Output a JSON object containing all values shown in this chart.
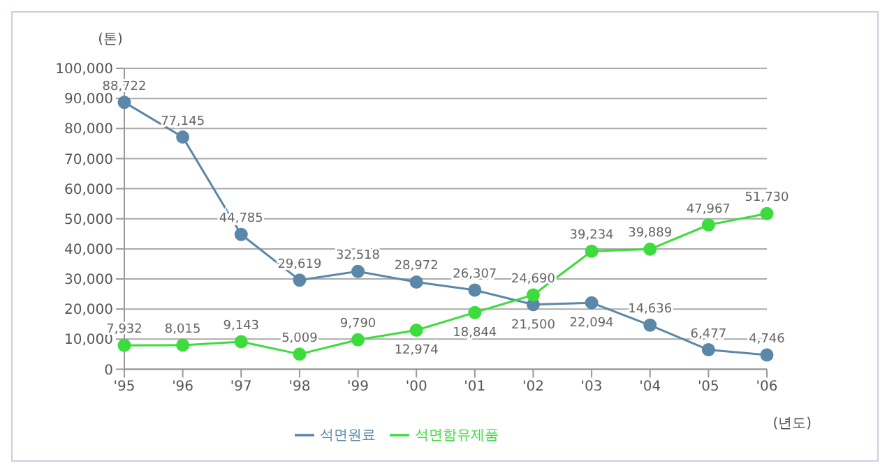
{
  "chart_data": {
    "type": "line",
    "ylabel": "(톤)",
    "xlabel": "(년도)",
    "categories": [
      "'95",
      "'96",
      "'97",
      "'98",
      "'99",
      "'00",
      "'01",
      "'02",
      "'03",
      "'04",
      "'05",
      "'06"
    ],
    "series": [
      {
        "name": "석면원료",
        "color": "#5b87a8",
        "values": [
          88722,
          77145,
          44785,
          29619,
          32518,
          28972,
          26307,
          21500,
          22094,
          14636,
          6477,
          4746
        ],
        "value_labels": [
          "88,722",
          "77,145",
          "44,785",
          "29,619",
          "32,518",
          "28,972",
          "26,307",
          "21,500",
          "22,094",
          "14,636",
          "6,477",
          "4,746"
        ]
      },
      {
        "name": "석면함유제품",
        "color": "#3ddc3d",
        "values": [
          7932,
          8015,
          9143,
          5009,
          9790,
          12974,
          18844,
          24690,
          39234,
          39889,
          47967,
          51730
        ],
        "value_labels": [
          "7,932",
          "8,015",
          "9,143",
          "5,009",
          "9,790",
          "12,974",
          "18,844",
          "24,690",
          "39,234",
          "39,889",
          "47,967",
          "51,730"
        ]
      }
    ],
    "ylim": [
      0,
      100000
    ],
    "yticks": [
      0,
      {
        "value": 10000,
        "label": "10,000"
      },
      {
        "value": 20000,
        "label": "20,000"
      },
      {
        "value": 30000,
        "label": "30,000"
      },
      {
        "value": 40000,
        "label": "40,000"
      },
      {
        "value": 50000,
        "label": "50,000"
      },
      {
        "value": 60000,
        "label": "60,000"
      },
      {
        "value": 70000,
        "label": "70,000"
      },
      {
        "value": 80000,
        "label": "80,000"
      },
      {
        "value": 90000,
        "label": "90,000"
      },
      {
        "value": 100000,
        "label": "100,000"
      }
    ],
    "grid": "y",
    "legend": "bottom",
    "marker": "circle",
    "line_style": "solid"
  }
}
